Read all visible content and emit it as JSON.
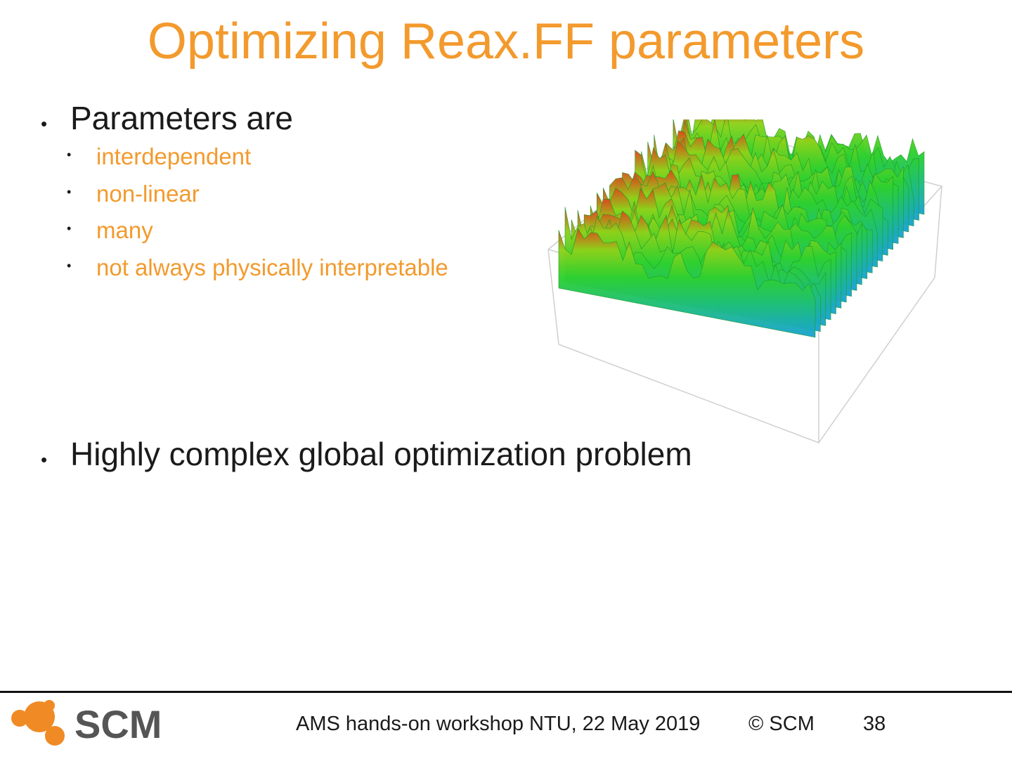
{
  "slide": {
    "title": "Optimizing Reax.FF parameters",
    "bullets": [
      {
        "text": "Parameters are",
        "sub": [
          "interdependent",
          "non-linear",
          "many",
          "not always physically interpretable"
        ]
      },
      {
        "text": "Highly complex global optimization problem"
      }
    ]
  },
  "figure": {
    "description_icon": "3d-surface-landscape-icon",
    "colors": {
      "low": "#1aa3d6",
      "mid": "#2fd12f",
      "high": "#e0461b"
    }
  },
  "footer": {
    "logo_text": "SCM",
    "event": "AMS hands-on workshop NTU, 22 May 2019",
    "copyright": "© SCM",
    "page_number": "38"
  },
  "colors": {
    "accent": "#f39a2d",
    "text": "#1a1a1a",
    "logo_orange": "#f08a24",
    "logo_gray": "#555555"
  }
}
